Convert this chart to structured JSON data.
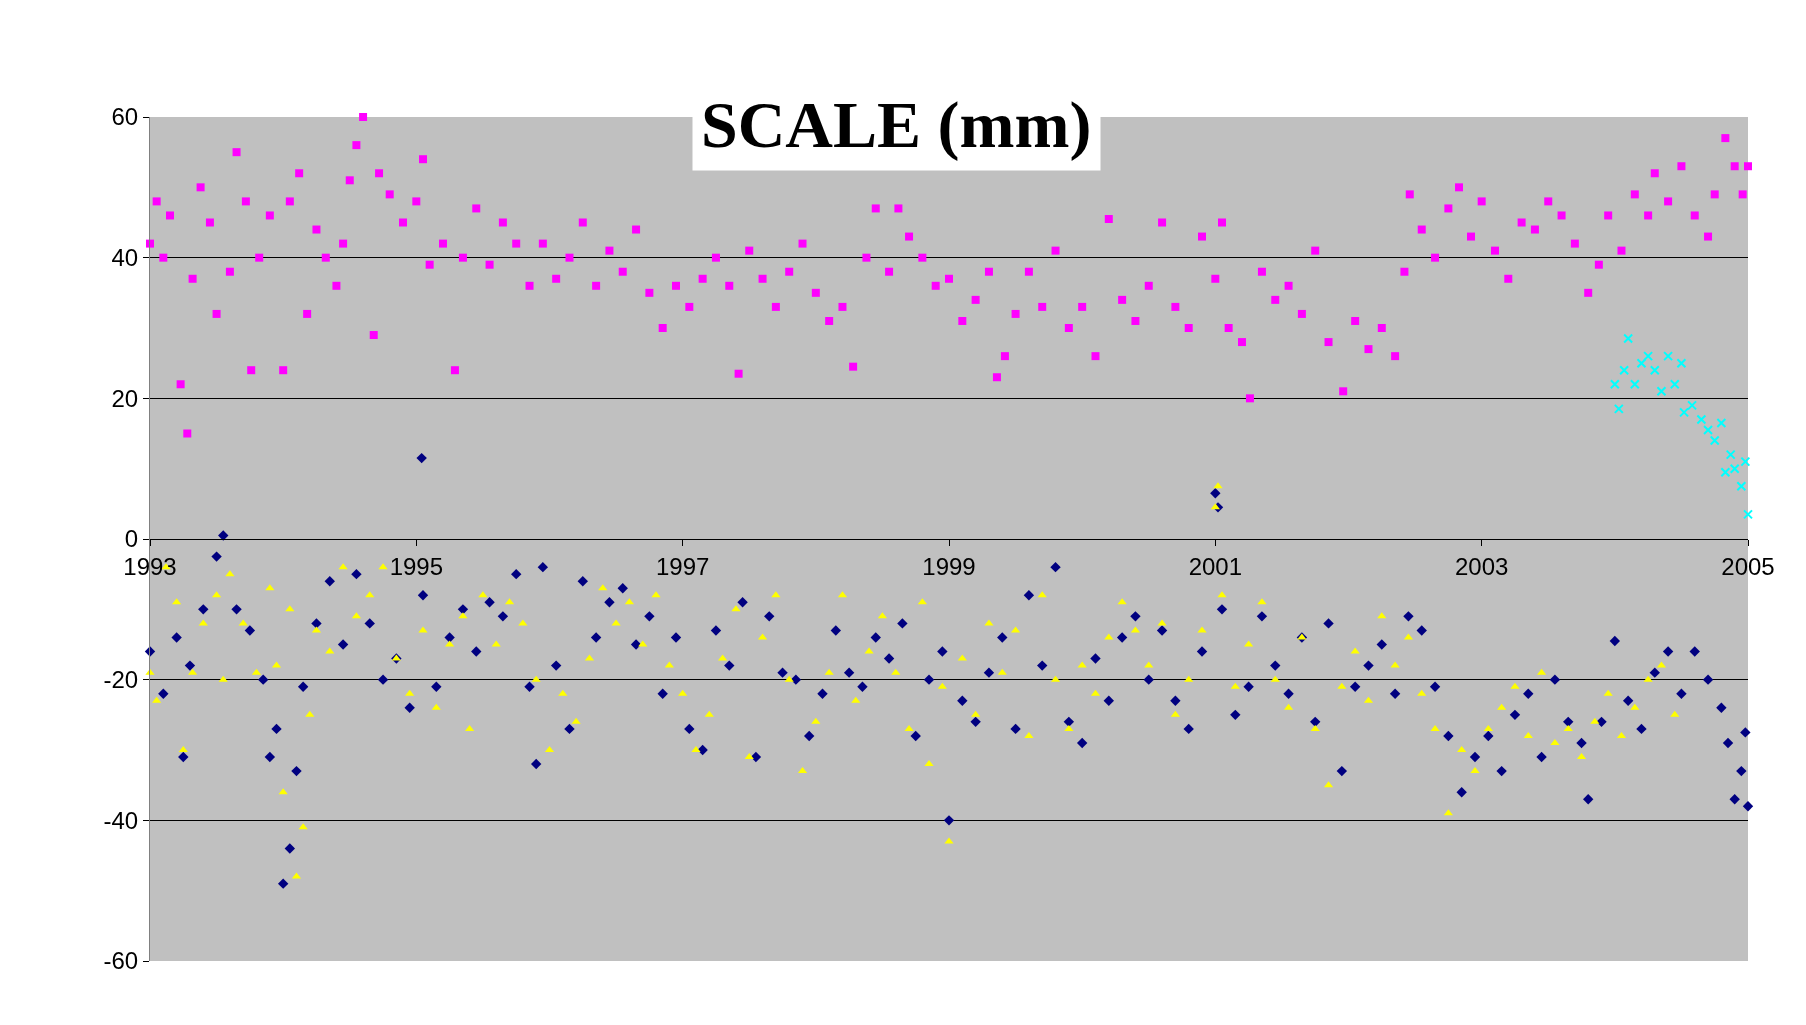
{
  "chart_data": {
    "type": "scatter",
    "title": "SCALE (mm)",
    "xlim": [
      1993,
      2005
    ],
    "xticks": [
      1993,
      1995,
      1997,
      1999,
      2001,
      2003,
      2005
    ],
    "ylim": [
      -60,
      60
    ],
    "yticks": [
      -60,
      -40,
      -20,
      0,
      20,
      40,
      60
    ],
    "grid": "y",
    "series": [
      {
        "color": "#ff00ff",
        "marker": "square",
        "x": [
          1993.0,
          1993.05,
          1993.1,
          1993.15,
          1993.23,
          1993.28,
          1993.32,
          1993.38,
          1993.45,
          1993.5,
          1993.6,
          1993.65,
          1993.72,
          1993.76,
          1993.82,
          1993.9,
          1994.0,
          1994.05,
          1994.12,
          1994.18,
          1994.25,
          1994.32,
          1994.4,
          1994.45,
          1994.5,
          1994.55,
          1994.6,
          1994.68,
          1994.72,
          1994.8,
          1994.9,
          1995.0,
          1995.05,
          1995.1,
          1995.2,
          1995.29,
          1995.35,
          1995.45,
          1995.55,
          1995.65,
          1995.75,
          1995.85,
          1995.95,
          1996.05,
          1996.15,
          1996.25,
          1996.35,
          1996.45,
          1996.55,
          1996.65,
          1996.75,
          1996.85,
          1996.95,
          1997.05,
          1997.15,
          1997.25,
          1997.35,
          1997.42,
          1997.5,
          1997.6,
          1997.7,
          1997.8,
          1997.9,
          1998.0,
          1998.1,
          1998.2,
          1998.28,
          1998.38,
          1998.45,
          1998.55,
          1998.62,
          1998.7,
          1998.8,
          1998.9,
          1999.0,
          1999.1,
          1999.2,
          1999.3,
          1999.36,
          1999.42,
          1999.5,
          1999.6,
          1999.7,
          1999.8,
          1999.9,
          2000.0,
          2000.1,
          2000.2,
          2000.3,
          2000.4,
          2000.5,
          2000.6,
          2000.7,
          2000.8,
          2000.9,
          2001.0,
          2001.05,
          2001.1,
          2001.2,
          2001.26,
          2001.35,
          2001.45,
          2001.55,
          2001.65,
          2001.75,
          2001.85,
          2001.96,
          2002.05,
          2002.15,
          2002.25,
          2002.35,
          2002.42,
          2002.46,
          2002.55,
          2002.65,
          2002.75,
          2002.83,
          2002.92,
          2003.0,
          2003.1,
          2003.2,
          2003.3,
          2003.4,
          2003.5,
          2003.6,
          2003.7,
          2003.8,
          2003.88,
          2003.95,
          2004.05,
          2004.15,
          2004.25,
          2004.3,
          2004.4,
          2004.5,
          2004.6,
          2004.7,
          2004.75,
          2004.83,
          2004.9,
          2004.96,
          2005.0
        ],
        "values": [
          42,
          48,
          40,
          46,
          22,
          15,
          37,
          50,
          45,
          32,
          38,
          55,
          48,
          24,
          40,
          46,
          24,
          48,
          52,
          32,
          44,
          40,
          36,
          42,
          51,
          56,
          60,
          29,
          52,
          49,
          45,
          48,
          54,
          39,
          42,
          24,
          40,
          47,
          39,
          45,
          42,
          36,
          42,
          37,
          40,
          45,
          36,
          41,
          38,
          44,
          35,
          30,
          36,
          33,
          37,
          40,
          36,
          23.5,
          41,
          37,
          33,
          38,
          42,
          35,
          31,
          33,
          24.5,
          40,
          47,
          38,
          47,
          43,
          40,
          36,
          37,
          31,
          34,
          38,
          23,
          26,
          32,
          38,
          33,
          41,
          30,
          33,
          26,
          45.5,
          34,
          31,
          36,
          45,
          33,
          30,
          43,
          37,
          45,
          30,
          28,
          20,
          38,
          34,
          36,
          32,
          41,
          28,
          21,
          31,
          27,
          30,
          26,
          38,
          49,
          44,
          40,
          47,
          50,
          43,
          48,
          41,
          37,
          45,
          44,
          48,
          46,
          42,
          35,
          39,
          46,
          41,
          49,
          46,
          52,
          48,
          53,
          46,
          43,
          49,
          57,
          53,
          49,
          53
        ]
      },
      {
        "color": "#00ffff",
        "marker": "cross",
        "x": [
          2004.0,
          2004.03,
          2004.07,
          2004.1,
          2004.15,
          2004.2,
          2004.25,
          2004.3,
          2004.35,
          2004.4,
          2004.45,
          2004.5,
          2004.52,
          2004.58,
          2004.65,
          2004.7,
          2004.75,
          2004.8,
          2004.83,
          2004.87,
          2004.9,
          2004.95,
          2004.98,
          2005.0
        ],
        "values": [
          22,
          18.5,
          24,
          28.5,
          22,
          25,
          26,
          24,
          21,
          26,
          22,
          25,
          18,
          19,
          17,
          15.5,
          14,
          16.5,
          9.5,
          12,
          10,
          7.5,
          11,
          3.5
        ]
      },
      {
        "color": "#000080",
        "marker": "diamond",
        "x": [
          1993.0,
          1993.1,
          1993.2,
          1993.25,
          1993.3,
          1993.4,
          1993.5,
          1993.55,
          1993.65,
          1993.75,
          1993.85,
          1993.9,
          1993.95,
          1994.0,
          1994.05,
          1994.1,
          1994.15,
          1994.25,
          1994.35,
          1994.45,
          1994.55,
          1994.65,
          1994.75,
          1994.85,
          1994.95,
          1995.04,
          1995.05,
          1995.15,
          1995.25,
          1995.35,
          1995.45,
          1995.55,
          1995.65,
          1995.75,
          1995.85,
          1995.9,
          1995.95,
          1996.05,
          1996.15,
          1996.25,
          1996.35,
          1996.45,
          1996.55,
          1996.65,
          1996.75,
          1996.85,
          1996.95,
          1997.05,
          1997.15,
          1997.25,
          1997.35,
          1997.45,
          1997.55,
          1997.65,
          1997.75,
          1997.85,
          1997.95,
          1998.05,
          1998.15,
          1998.25,
          1998.35,
          1998.45,
          1998.55,
          1998.65,
          1998.75,
          1998.85,
          1998.95,
          1999.0,
          1999.1,
          1999.2,
          1999.3,
          1999.4,
          1999.5,
          1999.6,
          1999.7,
          1999.8,
          1999.9,
          2000.0,
          2000.1,
          2000.2,
          2000.3,
          2000.4,
          2000.5,
          2000.6,
          2000.7,
          2000.8,
          2000.9,
          2001.0,
          2001.02,
          2001.05,
          2001.15,
          2001.25,
          2001.35,
          2001.45,
          2001.55,
          2001.65,
          2001.75,
          2001.85,
          2001.95,
          2002.05,
          2002.15,
          2002.25,
          2002.35,
          2002.45,
          2002.55,
          2002.65,
          2002.75,
          2002.85,
          2002.95,
          2003.05,
          2003.15,
          2003.25,
          2003.35,
          2003.45,
          2003.55,
          2003.65,
          2003.75,
          2003.8,
          2003.9,
          2004.0,
          2004.1,
          2004.2,
          2004.3,
          2004.4,
          2004.5,
          2004.6,
          2004.7,
          2004.8,
          2004.85,
          2004.9,
          2004.95,
          2004.98,
          2005.0
        ],
        "values": [
          -16,
          -22,
          -14,
          -31,
          -18,
          -10,
          -2.5,
          0.5,
          -10,
          -13,
          -20,
          -31,
          -27,
          -49,
          -44,
          -33,
          -21,
          -12,
          -6,
          -15,
          -5,
          -12,
          -20,
          -17,
          -24,
          11.5,
          -8,
          -21,
          -14,
          -10,
          -16,
          -9,
          -11,
          -5,
          -21,
          -32,
          -4,
          -18,
          -27,
          -6,
          -14,
          -9,
          -7,
          -15,
          -11,
          -22,
          -14,
          -27,
          -30,
          -13,
          -18,
          -9,
          -31,
          -11,
          -19,
          -20,
          -28,
          -22,
          -13,
          -19,
          -21,
          -14,
          -17,
          -12,
          -28,
          -20,
          -16,
          -40,
          -23,
          -26,
          -19,
          -14,
          -27,
          -8,
          -18,
          -4,
          -26,
          -29,
          -17,
          -23,
          -14,
          -11,
          -20,
          -13,
          -23,
          -27,
          -16,
          6.5,
          4.5,
          -10,
          -25,
          -21,
          -11,
          -18,
          -22,
          -14,
          -26,
          -12,
          -33,
          -21,
          -18,
          -15,
          -22,
          -11,
          -13,
          -21,
          -28,
          -36,
          -31,
          -28,
          -33,
          -25,
          -22,
          -31,
          -20,
          -26,
          -29,
          -37,
          -26,
          -14.5,
          -23,
          -27,
          -19,
          -16,
          -22,
          -16,
          -20,
          -24,
          -29,
          -37,
          -33,
          -27.5,
          -38
        ]
      },
      {
        "color": "#ffff00",
        "marker": "triangle",
        "x": [
          1993.0,
          1993.05,
          1993.12,
          1993.2,
          1993.25,
          1993.32,
          1993.4,
          1993.5,
          1993.55,
          1993.6,
          1993.7,
          1993.8,
          1993.9,
          1993.95,
          1994.0,
          1994.05,
          1994.1,
          1994.15,
          1994.2,
          1994.25,
          1994.35,
          1994.45,
          1994.55,
          1994.65,
          1994.75,
          1994.85,
          1994.95,
          1995.05,
          1995.15,
          1995.25,
          1995.35,
          1995.4,
          1995.5,
          1995.6,
          1995.7,
          1995.8,
          1995.9,
          1996.0,
          1996.1,
          1996.2,
          1996.3,
          1996.4,
          1996.5,
          1996.6,
          1996.7,
          1996.8,
          1996.9,
          1997.0,
          1997.1,
          1997.2,
          1997.3,
          1997.4,
          1997.5,
          1997.6,
          1997.7,
          1997.8,
          1997.9,
          1998.0,
          1998.1,
          1998.2,
          1998.3,
          1998.4,
          1998.5,
          1998.6,
          1998.7,
          1998.8,
          1998.85,
          1998.95,
          1999.0,
          1999.1,
          1999.2,
          1999.3,
          1999.4,
          1999.5,
          1999.6,
          1999.7,
          1999.8,
          1999.9,
          2000.0,
          2000.1,
          2000.2,
          2000.3,
          2000.4,
          2000.5,
          2000.6,
          2000.7,
          2000.8,
          2000.9,
          2001.0,
          2001.02,
          2001.05,
          2001.15,
          2001.25,
          2001.35,
          2001.45,
          2001.55,
          2001.65,
          2001.75,
          2001.85,
          2001.95,
          2002.05,
          2002.15,
          2002.25,
          2002.35,
          2002.45,
          2002.55,
          2002.65,
          2002.75,
          2002.85,
          2002.95,
          2003.05,
          2003.15,
          2003.25,
          2003.35,
          2003.45,
          2003.55,
          2003.65,
          2003.75,
          2003.85,
          2003.95,
          2004.05,
          2004.15,
          2004.25,
          2004.35,
          2004.45
        ],
        "values": [
          -19,
          -23,
          -4,
          -9,
          -30,
          -19,
          -12,
          -8,
          -20,
          -5,
          -12,
          -19,
          -7,
          -18,
          -36,
          -10,
          -48,
          -41,
          -25,
          -13,
          -16,
          -4,
          -11,
          -8,
          -4,
          -17,
          -22,
          -13,
          -24,
          -15,
          -11,
          -27,
          -8,
          -15,
          -9,
          -12,
          -20,
          -30,
          -22,
          -26,
          -17,
          -7,
          -12,
          -9,
          -15,
          -8,
          -18,
          -22,
          -30,
          -25,
          -17,
          -10,
          -31,
          -14,
          -8,
          -20,
          -33,
          -26,
          -19,
          -8,
          -23,
          -16,
          -11,
          -19,
          -27,
          -9,
          -32,
          -21,
          -43,
          -17,
          -25,
          -12,
          -19,
          -13,
          -28,
          -8,
          -20,
          -27,
          -18,
          -22,
          -14,
          -9,
          -13,
          -18,
          -12,
          -25,
          -20,
          -13,
          4.5,
          7.5,
          -8,
          -21,
          -15,
          -9,
          -20,
          -24,
          -14,
          -27,
          -35,
          -21,
          -16,
          -23,
          -11,
          -18,
          -14,
          -22,
          -27,
          -39,
          -30,
          -33,
          -27,
          -24,
          -21,
          -28,
          -19,
          -29,
          -27,
          -31,
          -26,
          -22,
          -28,
          -24,
          -20,
          -18,
          -25
        ]
      }
    ]
  }
}
